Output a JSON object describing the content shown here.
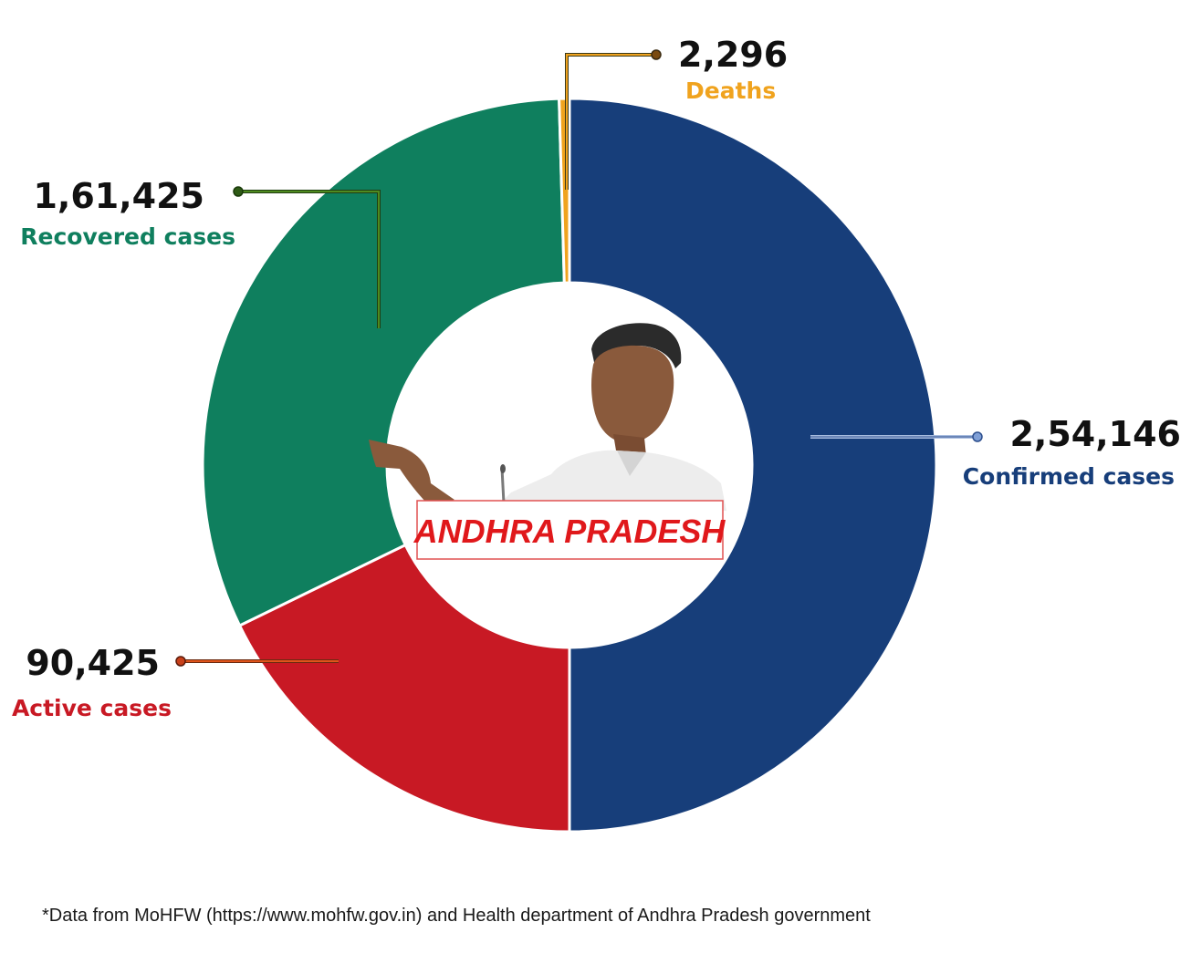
{
  "chart_data": {
    "type": "donut",
    "title": "",
    "center_label": "ANDHRA PRADESH",
    "slices": [
      {
        "name": "Confirmed cases",
        "value": 254146,
        "value_label": "2,54,146",
        "color": "#173e7a"
      },
      {
        "name": "Active cases",
        "value": 90425,
        "value_label": "90,425",
        "color": "#c81924"
      },
      {
        "name": "Recovered cases",
        "value": 161425,
        "value_label": "1,61,425",
        "color": "#0f7f5e"
      },
      {
        "name": "Deaths",
        "value": 2296,
        "value_label": "2,296",
        "color": "#f0a31e"
      }
    ],
    "legend": "none"
  },
  "footnote": "*Data from MoHFW (https://www.mohfw.gov.in) and Health department of Andhra Pradesh government",
  "icons": {
    "center_image": "politician-portrait-pointing"
  }
}
